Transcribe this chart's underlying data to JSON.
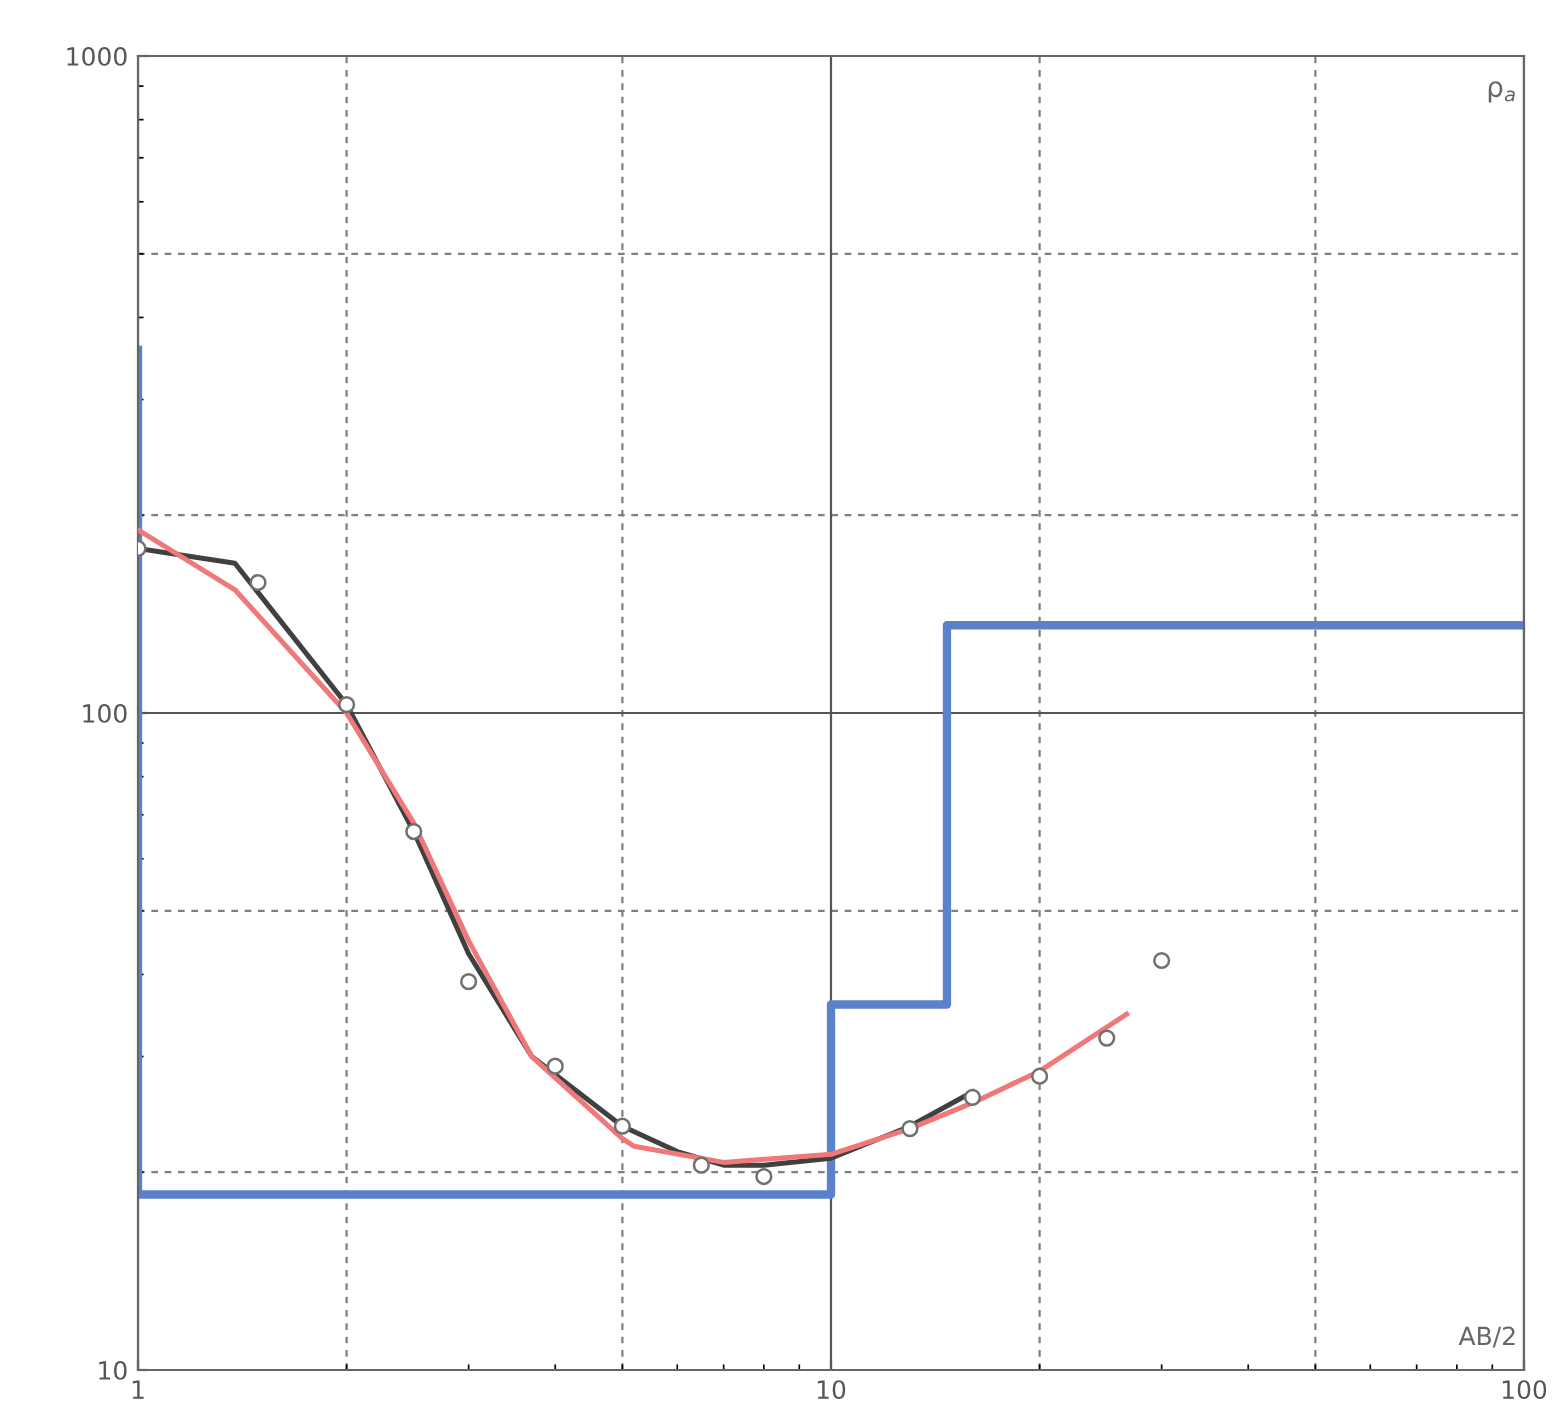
{
  "chart_data": {
    "type": "line",
    "xlabel": "AB/2",
    "ylabel": "ρ$_{a}$",
    "log": "xy",
    "grid": true,
    "legend": false,
    "xlim": [
      1,
      100
    ],
    "xticks": [
      1,
      10,
      100
    ],
    "ylim": [
      10,
      1000
    ],
    "yticks": [
      10,
      100,
      1000
    ],
    "ref_lines": [
      {
        "axis": "x",
        "value": 2,
        "line_style": "dashed",
        "color": "#808080"
      },
      {
        "axis": "x",
        "value": 5,
        "line_style": "dashed",
        "color": "#808080"
      },
      {
        "axis": "x",
        "value": 20,
        "line_style": "dashed",
        "color": "#808080"
      },
      {
        "axis": "x",
        "value": 50,
        "line_style": "dashed",
        "color": "#808080"
      },
      {
        "axis": "y",
        "value": 20,
        "line_style": "dashed",
        "color": "#808080"
      },
      {
        "axis": "y",
        "value": 50,
        "line_style": "dashed",
        "color": "#808080"
      },
      {
        "axis": "y",
        "value": 200,
        "line_style": "dashed",
        "color": "#808080"
      },
      {
        "axis": "y",
        "value": 500,
        "line_style": "dashed",
        "color": "#808080"
      }
    ],
    "series": [
      {
        "color": "#5b80cc",
        "line_style": "solid",
        "x": [
          1,
          1,
          10,
          10,
          14.7,
          14.7,
          100
        ],
        "values": [
          357,
          18.5,
          18.5,
          36,
          36,
          136,
          136
        ]
      },
      {
        "color": "#404040",
        "line_style": "solid",
        "x": [
          1,
          1.38,
          2,
          2.5,
          3,
          3.7,
          5,
          6,
          7,
          8,
          10,
          13,
          16
        ],
        "values": [
          178,
          169,
          103,
          66,
          43,
          30,
          23.5,
          21.5,
          20.5,
          20.5,
          21,
          23.5,
          26.5
        ]
      },
      {
        "color": "#f07878",
        "line_style": "solid",
        "x": [
          1,
          1.38,
          2,
          2.5,
          3,
          3.7,
          5,
          5.2,
          7,
          10,
          13,
          16,
          20,
          26.7
        ],
        "values": [
          190,
          154,
          100,
          68,
          45,
          30,
          22.5,
          21.9,
          20.7,
          21.3,
          23.3,
          25.5,
          28.5,
          34.8
        ]
      },
      {
        "type": "scatter",
        "color": "#707070",
        "marker": "circle",
        "x": [
          1,
          1.49,
          2,
          2.5,
          3,
          4,
          5,
          6.5,
          8,
          13,
          16,
          20,
          25,
          30
        ],
        "values": [
          178,
          158,
          103,
          66,
          39,
          29,
          23.5,
          20.5,
          19.7,
          23.3,
          26,
          28,
          32,
          42
        ]
      }
    ]
  }
}
